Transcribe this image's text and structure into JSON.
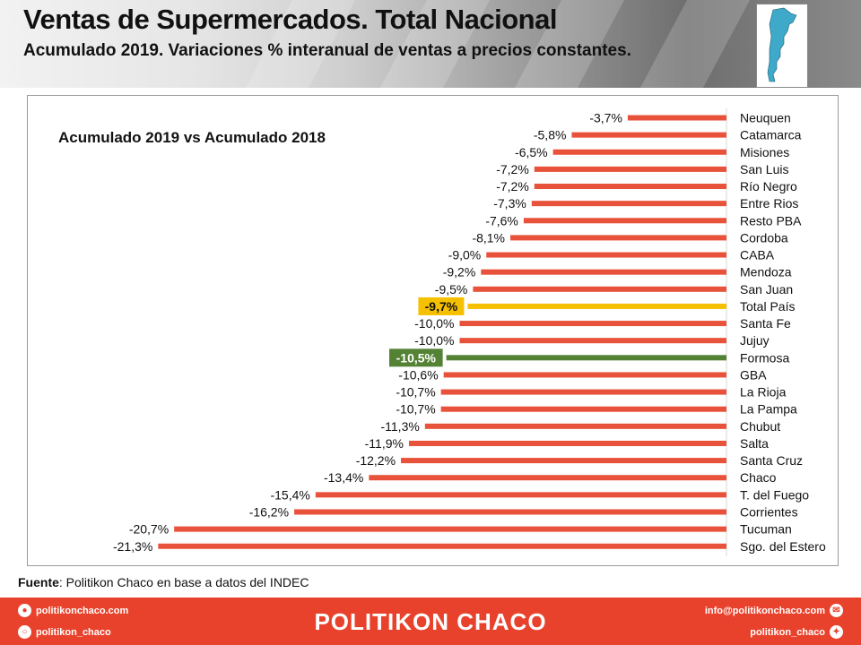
{
  "header": {
    "title": "Ventas de Supermercados. Total Nacional",
    "subtitle": "Acumulado 2019. Variaciones % interanual de ventas a precios constantes."
  },
  "colors": {
    "bar": "#e8523a",
    "total": "#f5c000",
    "highlight": "#548235",
    "footer": "#e8422c"
  },
  "chart_data": {
    "type": "bar",
    "orientation": "horizontal",
    "title": "Acumulado 2019 vs Acumulado 2018",
    "xlim": [
      -22,
      0
    ],
    "grid": false,
    "categories": [
      "Neuquen",
      "Catamarca",
      "Misiones",
      "San Luis",
      "Río Negro",
      "Entre Rios",
      "Resto PBA",
      "Cordoba",
      "CABA",
      "Mendoza",
      "San Juan",
      "Total País",
      "Santa Fe",
      "Jujuy",
      "Formosa",
      "GBA",
      "La Rioja",
      "La Pampa",
      "Chubut",
      "Salta",
      "Santa Cruz",
      "Chaco",
      "T. del Fuego",
      "Corrientes",
      "Tucuman",
      "Sgo. del Estero"
    ],
    "values": [
      -3.7,
      -5.8,
      -6.5,
      -7.2,
      -7.2,
      -7.3,
      -7.6,
      -8.1,
      -9.0,
      -9.2,
      -9.5,
      -9.7,
      -10.0,
      -10.0,
      -10.5,
      -10.6,
      -10.7,
      -10.7,
      -11.3,
      -11.9,
      -12.2,
      -13.4,
      -15.4,
      -16.2,
      -20.7,
      -21.3
    ],
    "labels": [
      "-3,7%",
      "-5,8%",
      "-6,5%",
      "-7,2%",
      "-7,2%",
      "-7,3%",
      "-7,6%",
      "-8,1%",
      "-9,0%",
      "-9,2%",
      "-9,5%",
      "-9,7%",
      "-10,0%",
      "-10,0%",
      "-10,5%",
      "-10,6%",
      "-10,7%",
      "-10,7%",
      "-11,3%",
      "-11,9%",
      "-12,2%",
      "-13,4%",
      "-15,4%",
      "-16,2%",
      "-20,7%",
      "-21,3%"
    ],
    "highlight_total": "Total País",
    "highlight_province": "Formosa"
  },
  "source": {
    "label": "Fuente",
    "text": ": Politikon Chaco en base a datos del INDEC"
  },
  "footer": {
    "website": "politikonchaco.com",
    "instagram": "politikon_chaco",
    "brand": "POLITIKON CHACO",
    "email": "info@politikonchaco.com",
    "twitter": "politikon_chaco"
  }
}
